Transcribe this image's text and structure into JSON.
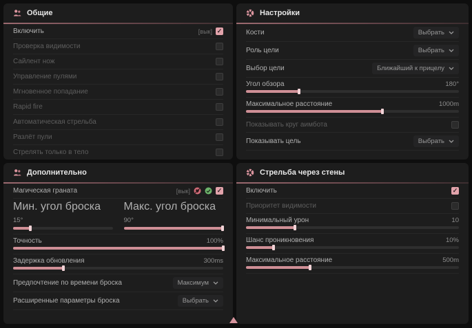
{
  "colors": {
    "accent": "#e2a3ab",
    "panel": "#1d1d1d",
    "background": "#0e0e0e",
    "slider_fill": "#cf8f96"
  },
  "panels": {
    "general": {
      "title": "Общие",
      "icon": "people-icon",
      "rows": [
        {
          "label": "Включить",
          "state": "[вык]",
          "checked": true
        },
        {
          "label": "Проверка видимости",
          "checked": false
        },
        {
          "label": "Сайлент нож",
          "checked": false
        },
        {
          "label": "Управление пулями",
          "checked": false
        },
        {
          "label": "Мгновенное попадание",
          "checked": false
        },
        {
          "label": "Rapid fire",
          "checked": false
        },
        {
          "label": "Автоматическая стрельба",
          "checked": false
        },
        {
          "label": "Разлёт пули",
          "checked": false
        },
        {
          "label": "Стрелять только в тело",
          "checked": false
        }
      ]
    },
    "settings": {
      "title": "Настройки",
      "icon": "gear-icon",
      "rows": [
        {
          "label": "Кости",
          "value": "Выбрать"
        },
        {
          "label": "Роль цели",
          "value": "Выбрать"
        },
        {
          "label": "Выбор цели",
          "value": "Ближайший к прицелу"
        },
        {
          "label": "Угол обзора",
          "value": "180°",
          "fill": 25
        },
        {
          "label": "Максимальное расстояние",
          "value": "1000m",
          "fill": 64
        },
        {
          "label": "Показывать круг аимбота",
          "checked": false
        },
        {
          "label": "Показывать цель",
          "value": "Выбрать"
        }
      ]
    },
    "additional": {
      "title": "Дополнительно",
      "icon": "people-icon",
      "rows": [
        {
          "label": "Магическая граната",
          "state": "[вык]",
          "checked": true,
          "icons": [
            "heart-off-icon",
            "check-circle-icon"
          ]
        },
        {
          "label": "Мин. угол броска",
          "value": "15°",
          "fill": 17
        },
        {
          "label": "Макс. угол броска",
          "value": "90°",
          "fill": 99
        },
        {
          "label": "Точность",
          "value": "100%",
          "fill": 100
        },
        {
          "label": "Задержка обновления",
          "value": "300ms",
          "fill": 24
        },
        {
          "label": "Предпочтение по времени броска",
          "value": "Максимум"
        },
        {
          "label": "Расширенные параметры броска",
          "value": "Выбрать"
        }
      ]
    },
    "wallbang": {
      "title": "Стрельба через стены",
      "icon": "gear-icon",
      "rows": [
        {
          "label": "Включить",
          "checked": true
        },
        {
          "label": "Приоритет видимости",
          "checked": false
        },
        {
          "label": "Минимальный урон",
          "value": "10",
          "fill": 23
        },
        {
          "label": "Шанс проникновения",
          "value": "10%",
          "fill": 13
        },
        {
          "label": "Максимальное расстояние",
          "value": "500m",
          "fill": 30
        }
      ]
    }
  }
}
